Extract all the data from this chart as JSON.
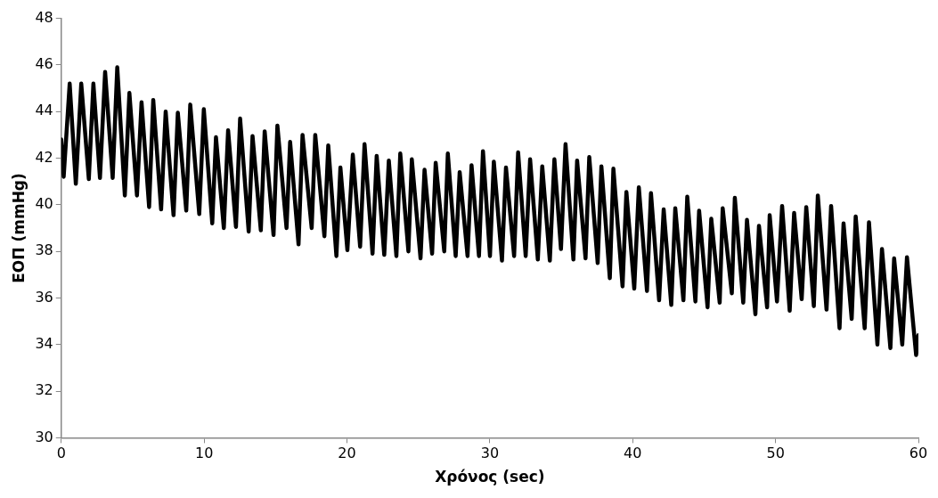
{
  "chart_data": {
    "type": "line",
    "xlabel": "Χρόνος (sec)",
    "ylabel": "ΕΟΠ (mmHg)",
    "xlim": [
      0,
      60
    ],
    "xticks": [
      0,
      10,
      20,
      30,
      40,
      50,
      60
    ],
    "ylim": [
      30,
      48
    ],
    "yticks": [
      30,
      32,
      34,
      36,
      38,
      40,
      42,
      44,
      46,
      48
    ],
    "grid": false,
    "legend": false,
    "marker": "none",
    "line_style": "solid",
    "series": [
      {
        "color": "#000000",
        "x": [
          0,
          0.17,
          0.59,
          1.02,
          1.4,
          1.93,
          2.25,
          2.71,
          3.07,
          3.6,
          3.92,
          4.45,
          4.77,
          5.3,
          5.62,
          6.15,
          6.44,
          6.99,
          7.31,
          7.86,
          8.16,
          8.75,
          9.03,
          9.66,
          9.98,
          10.57,
          10.83,
          11.38,
          11.68,
          12.23,
          12.52,
          13.12,
          13.39,
          13.97,
          14.24,
          14.86,
          15.13,
          15.77,
          16.02,
          16.61,
          16.89,
          17.53,
          17.78,
          18.42,
          18.69,
          19.26,
          19.54,
          20.03,
          20.41,
          20.92,
          21.23,
          21.79,
          22.08,
          22.61,
          22.93,
          23.46,
          23.73,
          24.3,
          24.54,
          25.15,
          25.43,
          25.96,
          26.21,
          26.81,
          27.06,
          27.61,
          27.89,
          28.44,
          28.72,
          29.24,
          29.52,
          30.01,
          30.28,
          30.85,
          31.13,
          31.7,
          31.98,
          32.51,
          32.82,
          33.36,
          33.67,
          34.2,
          34.52,
          34.98,
          35.3,
          35.85,
          36.11,
          36.7,
          36.96,
          37.55,
          37.81,
          38.4,
          38.65,
          39.29,
          39.56,
          40.11,
          40.43,
          41,
          41.28,
          41.85,
          42.17,
          42.7,
          42.98,
          43.55,
          43.82,
          44.39,
          44.65,
          45.24,
          45.5,
          46.09,
          46.3,
          46.94,
          47.15,
          47.74,
          48,
          48.59,
          48.84,
          49.41,
          49.59,
          50.1,
          50.46,
          50.99,
          51.3,
          51.83,
          52.15,
          52.68,
          52.96,
          53.57,
          53.89,
          54.48,
          54.76,
          55.33,
          55.61,
          56.24,
          56.54,
          57.13,
          57.45,
          58.04,
          58.3,
          58.87,
          59.2,
          59.84,
          60
        ],
        "values": [
          42.8,
          41.2,
          45.2,
          40.9,
          45.2,
          41.1,
          45.2,
          41.15,
          45.7,
          41.15,
          45.9,
          40.4,
          44.8,
          40.4,
          44.4,
          39.9,
          44.5,
          39.8,
          44,
          39.55,
          43.95,
          39.75,
          44.3,
          39.6,
          44.1,
          39.2,
          42.9,
          39,
          43.2,
          39.05,
          43.7,
          38.85,
          42.95,
          38.9,
          43.15,
          38.7,
          43.4,
          39,
          42.7,
          38.3,
          43,
          39,
          43,
          38.65,
          42.55,
          37.8,
          41.6,
          38.05,
          42.15,
          38.2,
          42.6,
          37.9,
          42.1,
          37.85,
          41.9,
          37.8,
          42.2,
          38,
          41.95,
          37.7,
          41.5,
          37.9,
          41.8,
          38,
          42.2,
          37.8,
          41.4,
          37.8,
          41.7,
          37.8,
          42.3,
          37.8,
          41.85,
          37.6,
          41.6,
          37.8,
          42.25,
          37.8,
          41.95,
          37.65,
          41.65,
          37.6,
          41.95,
          38.1,
          42.6,
          37.65,
          41.9,
          37.7,
          42.05,
          37.5,
          41.65,
          36.85,
          41.55,
          36.5,
          40.55,
          36.4,
          40.75,
          36.3,
          40.5,
          35.9,
          39.8,
          35.7,
          39.85,
          35.9,
          40.35,
          35.85,
          39.75,
          35.6,
          39.4,
          35.8,
          39.85,
          36.2,
          40.3,
          35.8,
          39.35,
          35.3,
          39.1,
          35.6,
          39.55,
          35.85,
          39.95,
          35.45,
          39.65,
          35.95,
          39.9,
          35.65,
          40.4,
          35.5,
          39.95,
          34.7,
          39.2,
          35.1,
          39.5,
          34.7,
          39.25,
          34,
          38.1,
          33.85,
          37.7,
          34,
          37.75,
          33.55,
          34.4
        ]
      }
    ]
  }
}
